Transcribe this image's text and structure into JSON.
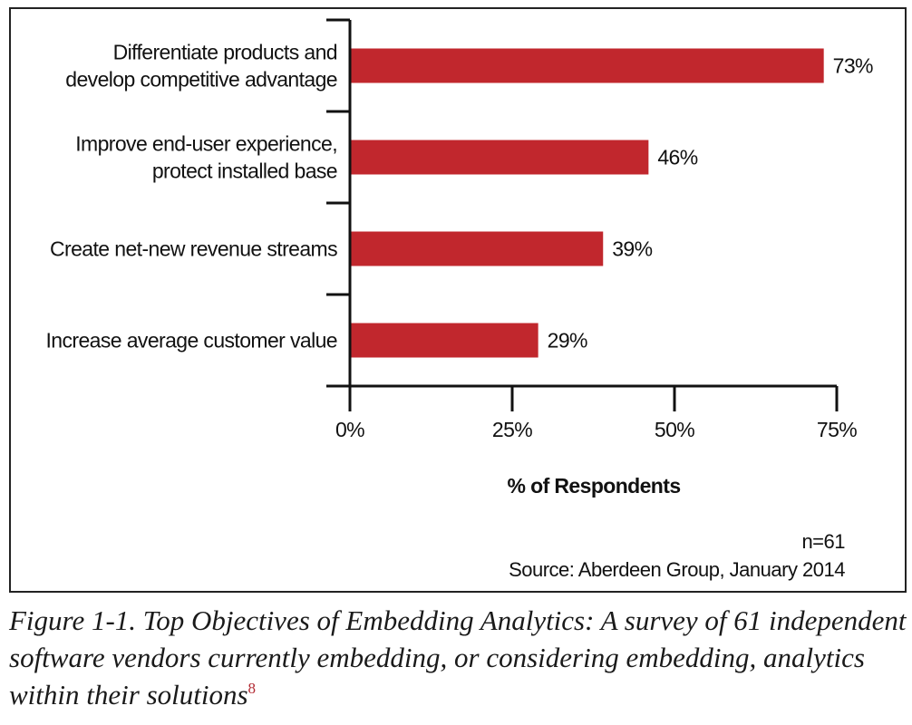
{
  "chart_data": {
    "type": "bar",
    "orientation": "horizontal",
    "categories": [
      [
        "Differentiate products and",
        "develop competitive advantage"
      ],
      [
        "Improve end-user experience,",
        "protect installed base"
      ],
      [
        "Create net-new revenue streams"
      ],
      [
        "Increase average customer value"
      ]
    ],
    "values": [
      73,
      46,
      39,
      29
    ],
    "value_labels": [
      "73%",
      "46%",
      "39%",
      "29%"
    ],
    "xlabel": "% of Respondents",
    "xlim": [
      0,
      75
    ],
    "xticks": [
      0,
      25,
      50,
      75
    ],
    "xtick_labels": [
      "0%",
      "25%",
      "50%",
      "75%"
    ],
    "bar_color": "#c1272d",
    "grid": false
  },
  "notes": {
    "sample": "n=61",
    "source": "Source: Aberdeen Group, January 2014"
  },
  "caption": {
    "text": "Figure 1-1. Top Objectives of Embedding Analytics: A survey of 61 independent software vendors currently embedding, or considering embedding, analytics within their solutions",
    "footnote": "8",
    "footnote_color": "#b22a33"
  }
}
